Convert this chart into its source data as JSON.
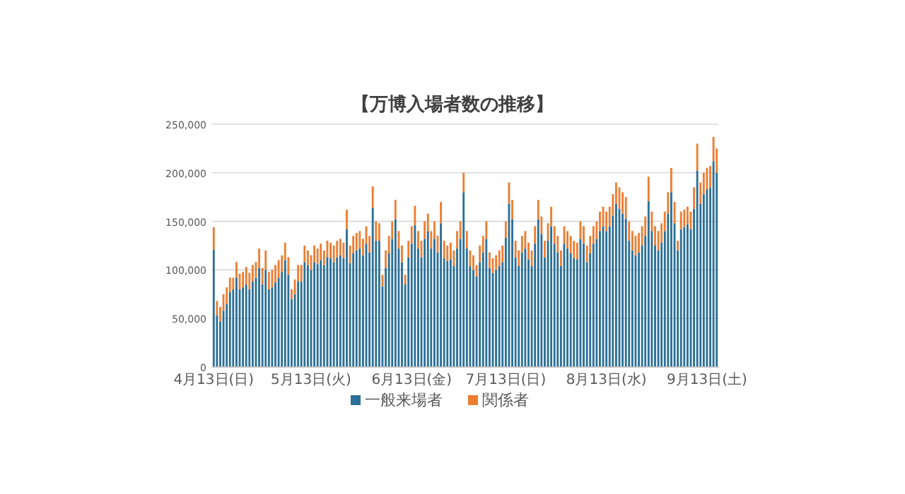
{
  "chart_data": {
    "type": "bar",
    "title": "【万博入場者数の推移】",
    "stacked": true,
    "grid": "y",
    "legend": "bottom",
    "categories": [
      "4月13日(日)",
      null,
      null,
      null,
      null,
      null,
      null,
      null,
      null,
      null,
      null,
      null,
      null,
      null,
      null,
      null,
      null,
      null,
      null,
      null,
      null,
      null,
      null,
      null,
      null,
      null,
      null,
      null,
      null,
      null,
      "5月13日(火)",
      null,
      null,
      null,
      null,
      null,
      null,
      null,
      null,
      null,
      null,
      null,
      null,
      null,
      null,
      null,
      null,
      null,
      null,
      null,
      null,
      null,
      null,
      null,
      null,
      null,
      null,
      null,
      null,
      null,
      null,
      "6月13日(金)",
      null,
      null,
      null,
      null,
      null,
      null,
      null,
      null,
      null,
      null,
      null,
      null,
      null,
      null,
      null,
      null,
      null,
      null,
      null,
      null,
      null,
      null,
      null,
      null,
      null,
      null,
      null,
      null,
      "7月13日(日)",
      null,
      null,
      null,
      null,
      null,
      null,
      null,
      null,
      null,
      null,
      null,
      null,
      null,
      null,
      null,
      null,
      null,
      null,
      null,
      null,
      null,
      null,
      null,
      null,
      null,
      null,
      null,
      null,
      null,
      null,
      "8月13日(水)",
      null,
      null,
      null,
      null,
      null,
      null,
      null,
      null,
      null,
      null,
      null,
      null,
      null,
      null,
      null,
      null,
      null,
      null,
      null,
      null,
      null,
      null,
      null,
      null,
      null,
      null,
      null,
      null,
      null,
      null,
      "9月13日(土)",
      null,
      null,
      null
    ],
    "ylim": [
      0,
      250000
    ],
    "yticks": [
      0,
      {
        "value": 50000,
        "label": "50,000"
      },
      {
        "value": 100000,
        "label": "100,000"
      },
      {
        "value": 150000,
        "label": "150,000"
      },
      {
        "value": 200000,
        "label": "200,000"
      },
      {
        "value": 250000,
        "label": "250,000"
      }
    ],
    "series": [
      {
        "name": "一般来場者",
        "color": "#2a6f97",
        "values": [
          121000,
          53000,
          47000,
          58000,
          65000,
          77000,
          80000,
          92000,
          80000,
          82000,
          85000,
          80000,
          88000,
          92000,
          102000,
          85000,
          100000,
          80000,
          82000,
          87000,
          92000,
          98000,
          110000,
          95000,
          70000,
          75000,
          88000,
          88000,
          108000,
          105000,
          100000,
          108000,
          106000,
          110000,
          105000,
          113000,
          112000,
          108000,
          113000,
          115000,
          112000,
          142000,
          107000,
          117000,
          120000,
          122000,
          115000,
          127000,
          118000,
          164000,
          130000,
          130000,
          83000,
          102000,
          117000,
          132000,
          152000,
          122000,
          108000,
          85000,
          113000,
          127000,
          146000,
          122000,
          113000,
          132000,
          140000,
          122000,
          132000,
          118000,
          148000,
          112000,
          109000,
          111000,
          104000,
          122000,
          132000,
          180000,
          122000,
          104000,
          100000,
          93000,
          108000,
          118000,
          132000,
          102000,
          97000,
          100000,
          104000,
          108000,
          133000,
          168000,
          152000,
          113000,
          104000,
          118000,
          122000,
          111000,
          104000,
          127000,
          152000,
          137000,
          113000,
          130000,
          145000,
          127000,
          118000,
          104000,
          127000,
          122000,
          117000,
          112000,
          111000,
          132000,
          127000,
          108000,
          117000,
          127000,
          132000,
          140000,
          145000,
          140000,
          145000,
          156000,
          168000,
          163000,
          158000,
          153000,
          130000,
          120000,
          115000,
          118000,
          125000,
          135000,
          171000,
          140000,
          125000,
          120000,
          128000,
          140000,
          158000,
          180000,
          148000,
          120000,
          142000,
          144000,
          147000,
          142000,
          163000,
          202000,
          168000,
          178000,
          183000,
          185000,
          212000,
          200000
        ]
      },
      {
        "name": "関係者",
        "color": "#ed7d31",
        "values": [
          23000,
          15000,
          15000,
          17000,
          17000,
          15000,
          12000,
          16000,
          16000,
          16000,
          18000,
          17000,
          17000,
          16000,
          20000,
          17000,
          20000,
          18000,
          18000,
          18000,
          18000,
          17000,
          18000,
          18000,
          10000,
          15000,
          17000,
          17000,
          17000,
          15000,
          15000,
          17000,
          16000,
          17000,
          15000,
          17000,
          16000,
          17000,
          17000,
          17000,
          16000,
          20000,
          18000,
          18000,
          18000,
          18000,
          17000,
          18000,
          17000,
          22000,
          20000,
          18000,
          12000,
          18000,
          18000,
          18000,
          20000,
          18000,
          17000,
          10000,
          17000,
          18000,
          20000,
          18000,
          17000,
          18000,
          18000,
          18000,
          18000,
          17000,
          22000,
          18000,
          16000,
          17000,
          16000,
          18000,
          18000,
          20000,
          18000,
          16000,
          15000,
          12000,
          17000,
          17000,
          18000,
          16000,
          15000,
          15000,
          16000,
          17000,
          17000,
          22000,
          20000,
          17000,
          16000,
          17000,
          18000,
          17000,
          16000,
          18000,
          20000,
          18000,
          17000,
          18000,
          20000,
          18000,
          17000,
          16000,
          18000,
          18000,
          18000,
          18000,
          17000,
          18000,
          18000,
          17000,
          18000,
          18000,
          18000,
          20000,
          20000,
          20000,
          20000,
          22000,
          22000,
          22000,
          22000,
          22000,
          20000,
          20000,
          20000,
          20000,
          20000,
          20000,
          25000,
          20000,
          20000,
          20000,
          20000,
          20000,
          22000,
          25000,
          22000,
          10000,
          18000,
          18000,
          18000,
          18000,
          22000,
          28000,
          22000,
          22000,
          22000,
          22000,
          25000,
          25000
        ]
      }
    ]
  }
}
